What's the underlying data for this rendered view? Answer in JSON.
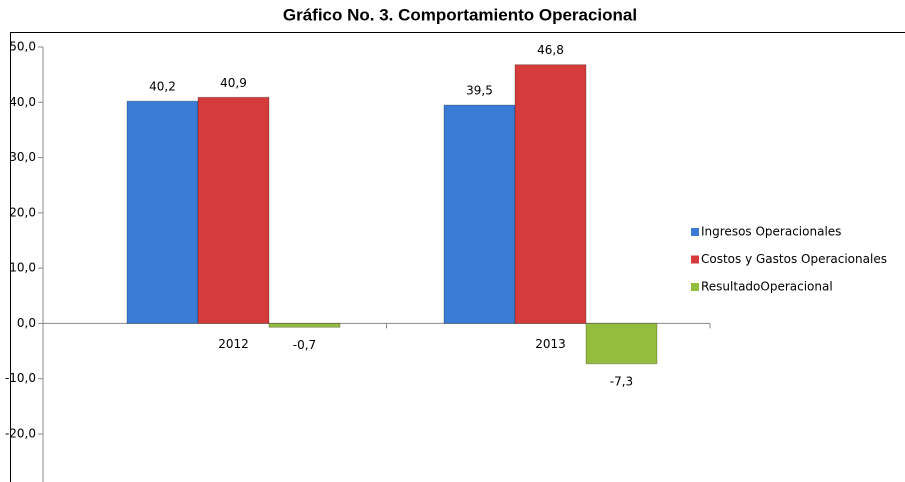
{
  "chart_data": {
    "type": "bar",
    "title": "Gráfico No. 3. Comportamiento Operacional",
    "categories": [
      "2012",
      "2013"
    ],
    "series": [
      {
        "name": "Ingresos Operacionales",
        "color": "#3a7bd5",
        "values": [
          40.2,
          39.5
        ],
        "value_labels": [
          "40,2",
          "39,5"
        ]
      },
      {
        "name": "Costos y Gastos Operacionales",
        "color": "#d63b3b",
        "values": [
          40.9,
          46.8
        ],
        "value_labels": [
          "40,9",
          "46,8"
        ]
      },
      {
        "name": "ResultadoOperacional",
        "color": "#94bd3e",
        "values": [
          -0.7,
          -7.3
        ],
        "value_labels": [
          "-0,7",
          "-7,3"
        ]
      }
    ],
    "ylim": [
      -20,
      50
    ],
    "yticks": [
      {
        "value": -20,
        "label": "-20,0"
      },
      {
        "value": -10,
        "label": "-10,0"
      },
      {
        "value": 0,
        "label": "0,0"
      },
      {
        "value": 10,
        "label": "10,0"
      },
      {
        "value": 20,
        "label": "20,0"
      },
      {
        "value": 30,
        "label": "30,0"
      },
      {
        "value": 40,
        "label": "40,0"
      },
      {
        "value": 50,
        "label": "50,0"
      }
    ],
    "grid": false,
    "legend": "right"
  }
}
